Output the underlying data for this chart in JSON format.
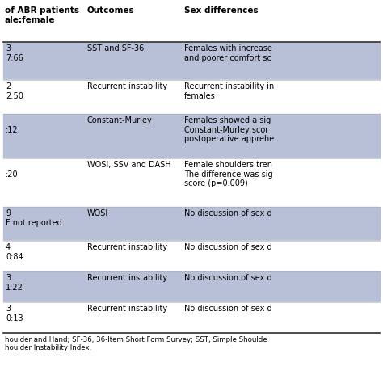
{
  "header_col1": "of ABR patients\nale:female",
  "header_col2": "Outcomes",
  "header_col3": "Sex differences",
  "col1_values": [
    "3\n7:66",
    "2\n2:50",
    "\n:12",
    "\n:20",
    "9\nF not reported",
    "4\n0:84",
    "3\n1:22",
    "3\n0:13"
  ],
  "col2_values": [
    "SST and SF-36",
    "Recurrent instability",
    "Constant-Murley",
    "WOSI, SSV and DASH",
    "WOSI",
    "Recurrent instability",
    "Recurrent instability",
    "Recurrent instability"
  ],
  "col3_values": [
    "Females with increase\nand poorer comfort sc",
    "Recurrent instability in\nfemales",
    "Females showed a sig\nConstant-Murley scor\npostoperative apprehe",
    "Female shoulders tren\nThe difference was sig\nscore (p=0.009)",
    "No discussion of sex d",
    "No discussion of sex d",
    "No discussion of sex d",
    "No discussion of sex d"
  ],
  "row_colors": [
    "#b8c0d8",
    "#ffffff",
    "#b8c0d8",
    "#ffffff",
    "#b8c0d8",
    "#ffffff",
    "#b8c0d8",
    "#ffffff"
  ],
  "header_bg": "#ffffff",
  "font_size": 7.0,
  "header_font_size": 7.5,
  "footer_text": "houlder and Hand; SF-36, 36-Item Short Form Survey; SST, Simple Shoulde\nhoulder Instability Index.",
  "text_color": "#000000",
  "line_color": "#555555"
}
